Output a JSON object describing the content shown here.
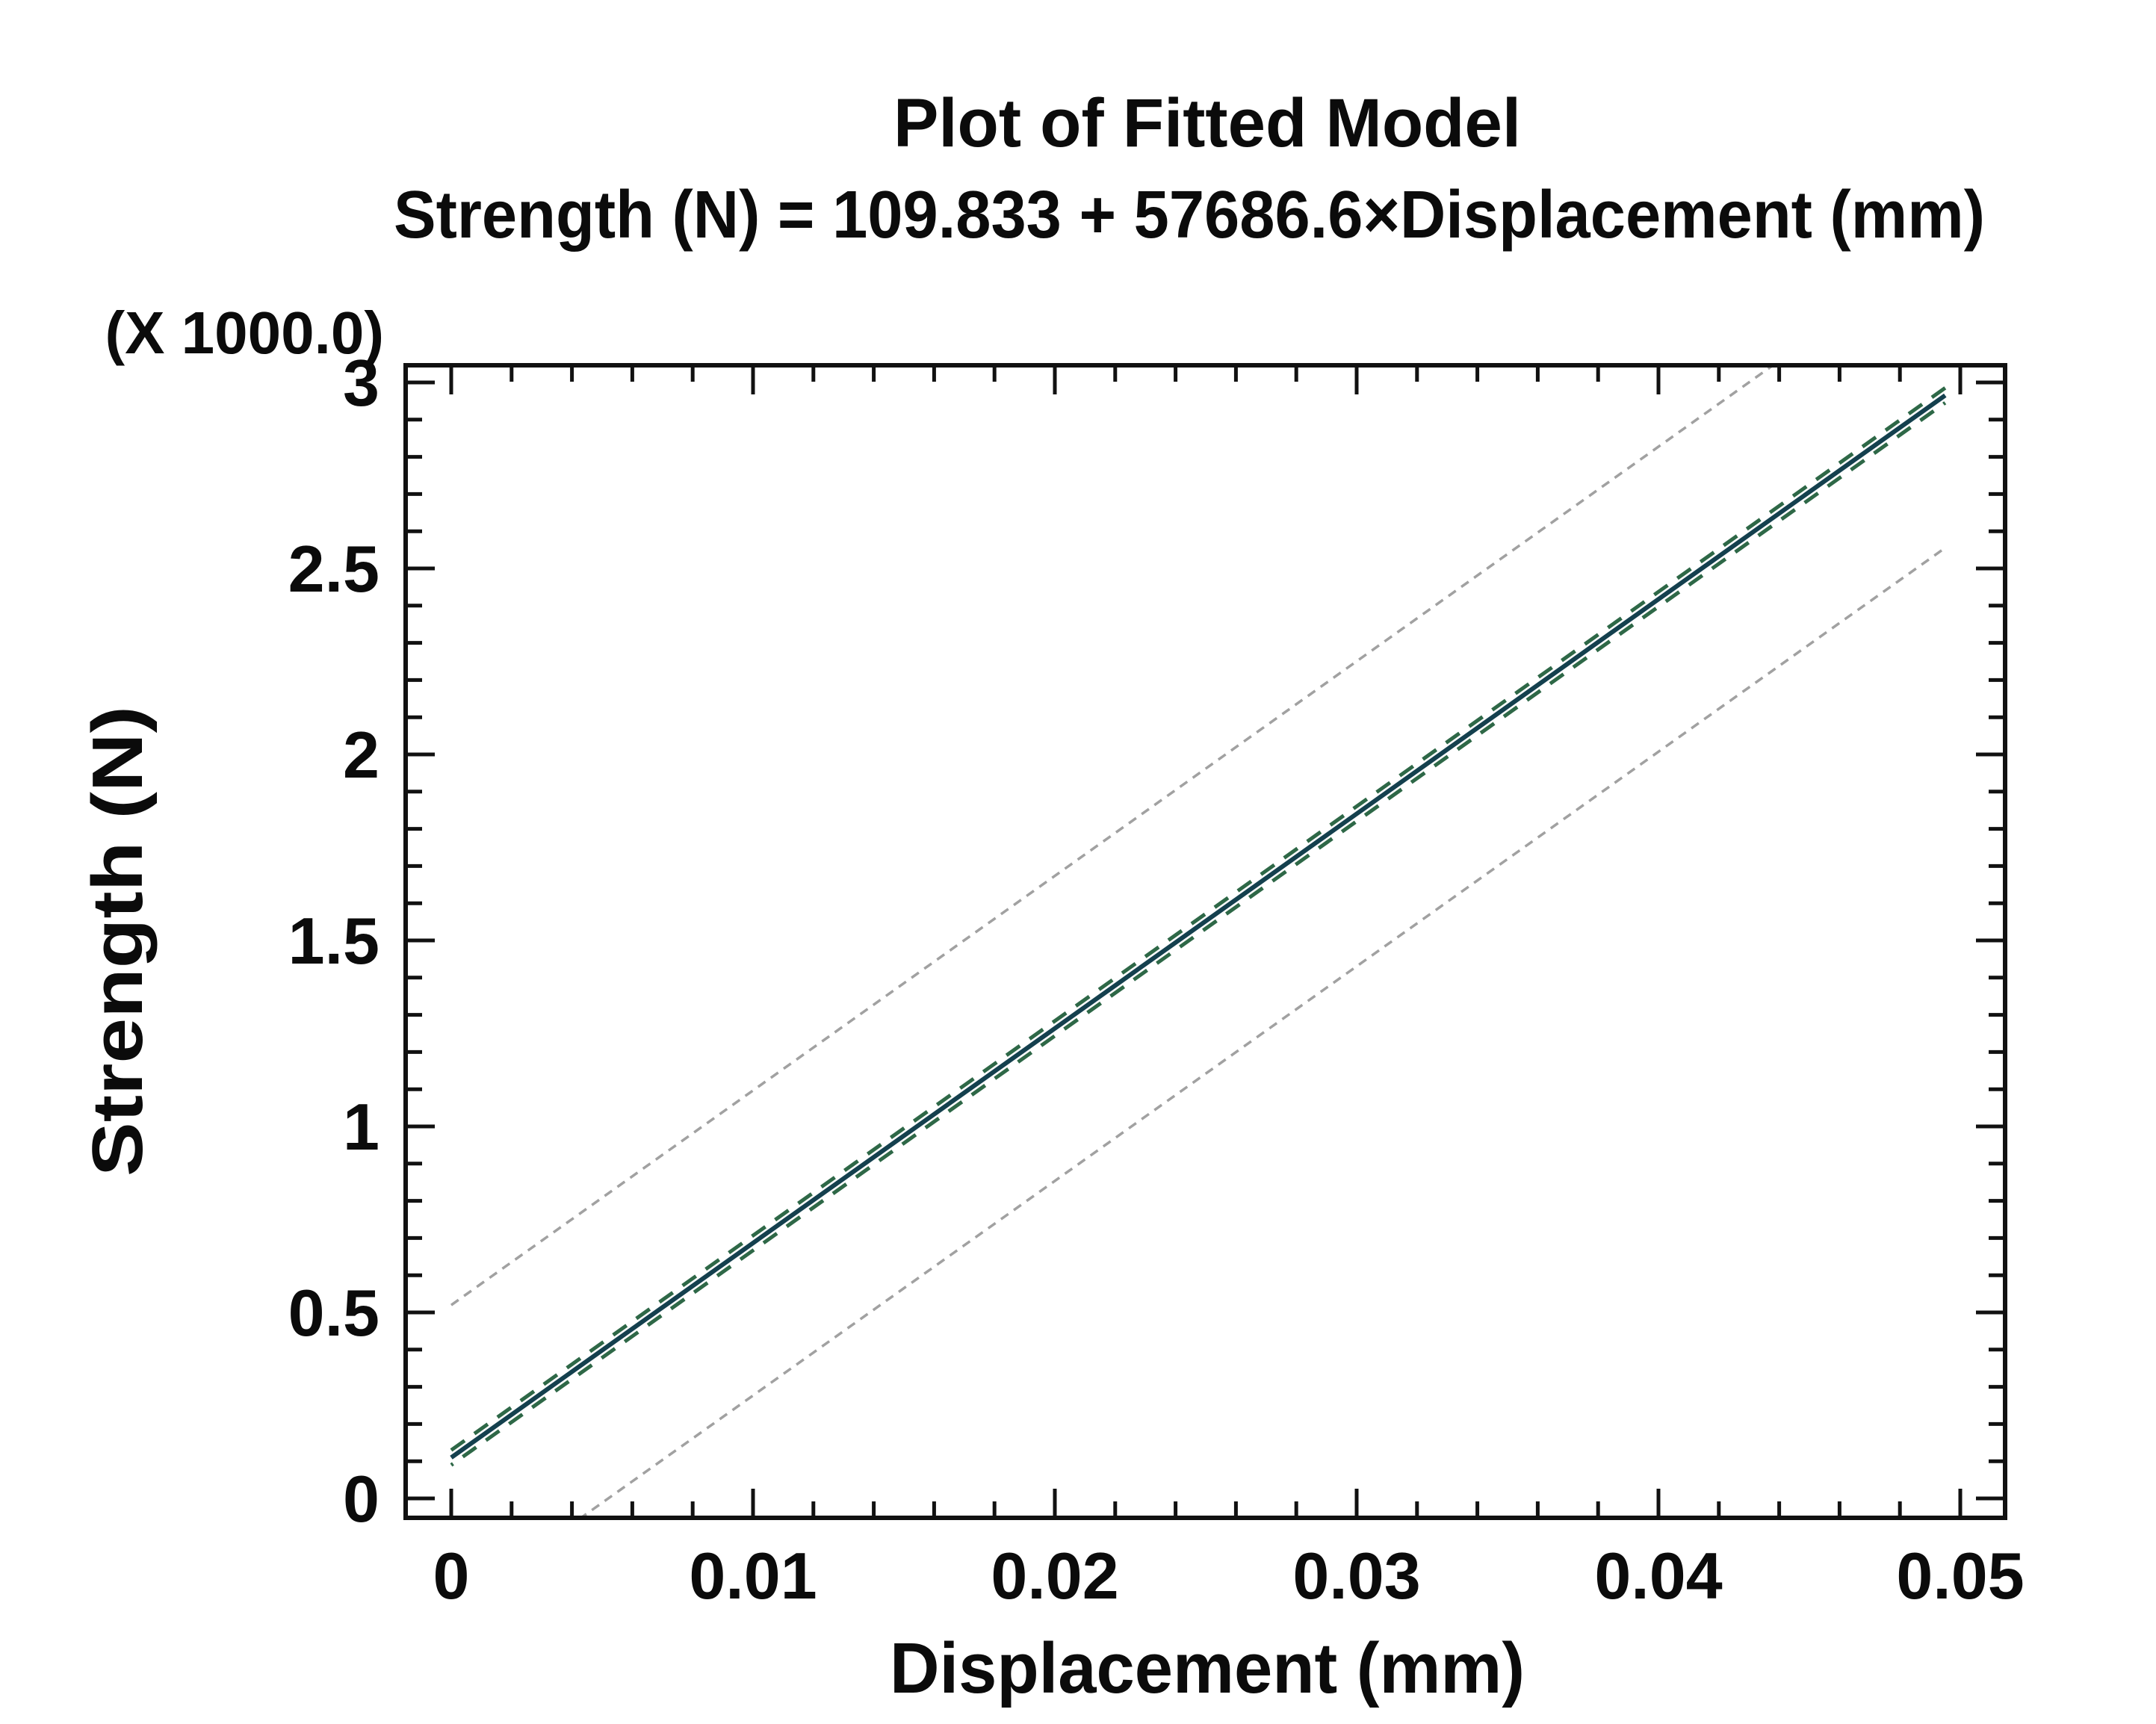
{
  "page": {
    "background": "#ffffff",
    "text_color": "#0b0b0b"
  },
  "chart_data": {
    "type": "line",
    "title": "Plot of Fitted Model",
    "equation": "Strength (N) = 109.833 + 57686.6×Displacement (mm)",
    "model": {
      "intercept": 109.833,
      "slope": 57686.6
    },
    "xlabel": "Displacement (mm)",
    "ylabel": "Strength (N)",
    "y_scale_note": "(X 1000.0)",
    "xlim": [
      -0.0015,
      0.0515
    ],
    "ylim": [
      -52,
      3052
    ],
    "grid": false,
    "legend": false,
    "x_ticks": {
      "values": [
        0,
        0.01,
        0.02,
        0.03,
        0.04,
        0.05
      ],
      "labels": [
        "0",
        "0.01",
        "0.02",
        "0.03",
        "0.04",
        "0.05"
      ],
      "minor_step": 0.002
    },
    "y_ticks": {
      "values": [
        0,
        500,
        1000,
        1500,
        2000,
        2500,
        3000
      ],
      "labels": [
        "0",
        "0.5",
        "1",
        "1.5",
        "2",
        "2.5",
        "3"
      ],
      "minor_step": 100
    },
    "x_data_range": [
      0,
      0.0495
    ],
    "series": [
      {
        "name": "prediction-limit-upper",
        "role": "prediction",
        "color": "#a1a1a1",
        "style": "dotted",
        "x": [
          0,
          0.0495
        ],
        "y": [
          519.8,
          3375.3
        ]
      },
      {
        "name": "prediction-limit-lower",
        "role": "prediction",
        "color": "#a1a1a1",
        "style": "dotted",
        "x": [
          0,
          0.0495
        ],
        "y": [
          -300.2,
          2555.3
        ]
      },
      {
        "name": "confidence-limit-upper",
        "role": "confidence",
        "color": "#2e6847",
        "style": "dashed",
        "x": [
          0,
          0.0495
        ],
        "y": [
          129.8,
          2985.3
        ]
      },
      {
        "name": "confidence-limit-lower",
        "role": "confidence",
        "color": "#2e6847",
        "style": "dashed",
        "x": [
          0,
          0.0495
        ],
        "y": [
          89.8,
          2945.3
        ]
      },
      {
        "name": "fitted-line",
        "role": "fitted",
        "color": "#14404e",
        "style": "solid",
        "x": [
          0,
          0.0495
        ],
        "y": [
          109.8,
          2965.3
        ]
      }
    ]
  }
}
